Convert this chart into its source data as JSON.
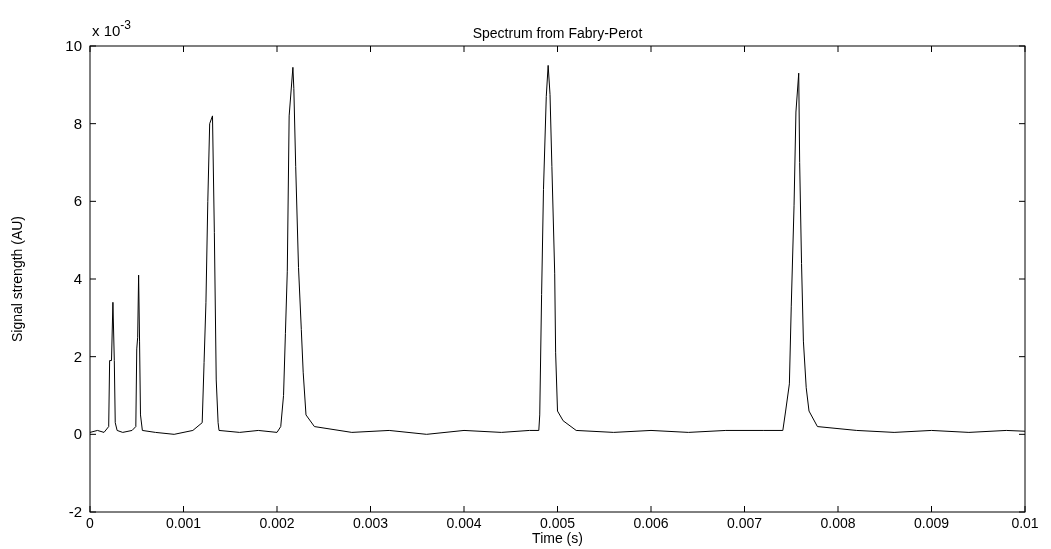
{
  "chart_data": {
    "type": "line",
    "title": "Spectrum from Fabry-Perot",
    "xlabel": "Time (s)",
    "ylabel": "Signal strength (AU)",
    "annotations": [
      "x 10$^{-3}$"
    ],
    "xlim": [
      0,
      0.01
    ],
    "xticks": [
      0,
      0.001,
      0.002,
      0.003,
      0.004,
      0.005,
      0.006,
      0.007,
      0.008,
      0.009,
      0.01
    ],
    "ylim": [
      -2,
      10
    ],
    "yticks": [
      -2,
      0,
      2,
      4,
      6,
      8,
      10
    ],
    "grid": false,
    "series": [
      {
        "color": "#000000",
        "x": [
          0,
          8e-05,
          0.00015,
          0.0002,
          0.00021,
          0.00023,
          0.000245,
          0.00026,
          0.00027,
          0.00029,
          0.00035,
          0.00045,
          0.00049,
          0.0005,
          0.00051,
          0.00052,
          0.00053,
          0.00054,
          0.00056,
          0.0007,
          0.0009,
          0.0011,
          0.0012,
          0.00122,
          0.00124,
          0.00126,
          0.00128,
          0.00131,
          0.00133,
          0.00135,
          0.00137,
          0.00138,
          0.0016,
          0.0018,
          0.002,
          0.00204,
          0.00207,
          0.00209,
          0.00211,
          0.00213,
          0.00217,
          0.00218,
          0.0022,
          0.00223,
          0.00226,
          0.00228,
          0.00231,
          0.0024,
          0.0028,
          0.0032,
          0.0036,
          0.004,
          0.0044,
          0.0047,
          0.0048,
          0.00481,
          0.00483,
          0.00485,
          0.00488,
          0.0049,
          0.00492,
          0.00494,
          0.00497,
          0.00498,
          0.005,
          0.00506,
          0.0052,
          0.0056,
          0.006,
          0.0064,
          0.0068,
          0.0072,
          0.00741,
          0.00744,
          0.00748,
          0.0075,
          0.00753,
          0.00755,
          0.00758,
          0.00759,
          0.00761,
          0.00763,
          0.00766,
          0.00769,
          0.00778,
          0.0082,
          0.0086,
          0.009,
          0.0094,
          0.0098,
          0.01
        ],
        "values": [
          0.05,
          0.1,
          0.05,
          0.2,
          1.9,
          1.9,
          3.4,
          1.9,
          0.3,
          0.1,
          0.05,
          0.1,
          0.2,
          2.2,
          2.5,
          4.1,
          2.4,
          0.5,
          0.1,
          0.05,
          0.0,
          0.1,
          0.3,
          1.85,
          3.4,
          6.0,
          8.0,
          8.2,
          5.2,
          1.4,
          0.3,
          0.1,
          0.05,
          0.1,
          0.05,
          0.2,
          1.0,
          2.6,
          4.2,
          8.2,
          9.45,
          8.9,
          6.9,
          4.3,
          2.7,
          1.6,
          0.5,
          0.2,
          0.05,
          0.1,
          0.0,
          0.1,
          0.05,
          0.1,
          0.1,
          0.5,
          3.6,
          6.3,
          8.7,
          9.5,
          8.75,
          6.9,
          4.15,
          2.1,
          0.6,
          0.35,
          0.1,
          0.05,
          0.1,
          0.05,
          0.1,
          0.1,
          0.1,
          0.6,
          1.3,
          3.3,
          5.9,
          8.3,
          9.3,
          7.0,
          4.4,
          2.4,
          1.2,
          0.6,
          0.2,
          0.1,
          0.05,
          0.1,
          0.05,
          0.1,
          0.08
        ]
      }
    ]
  }
}
